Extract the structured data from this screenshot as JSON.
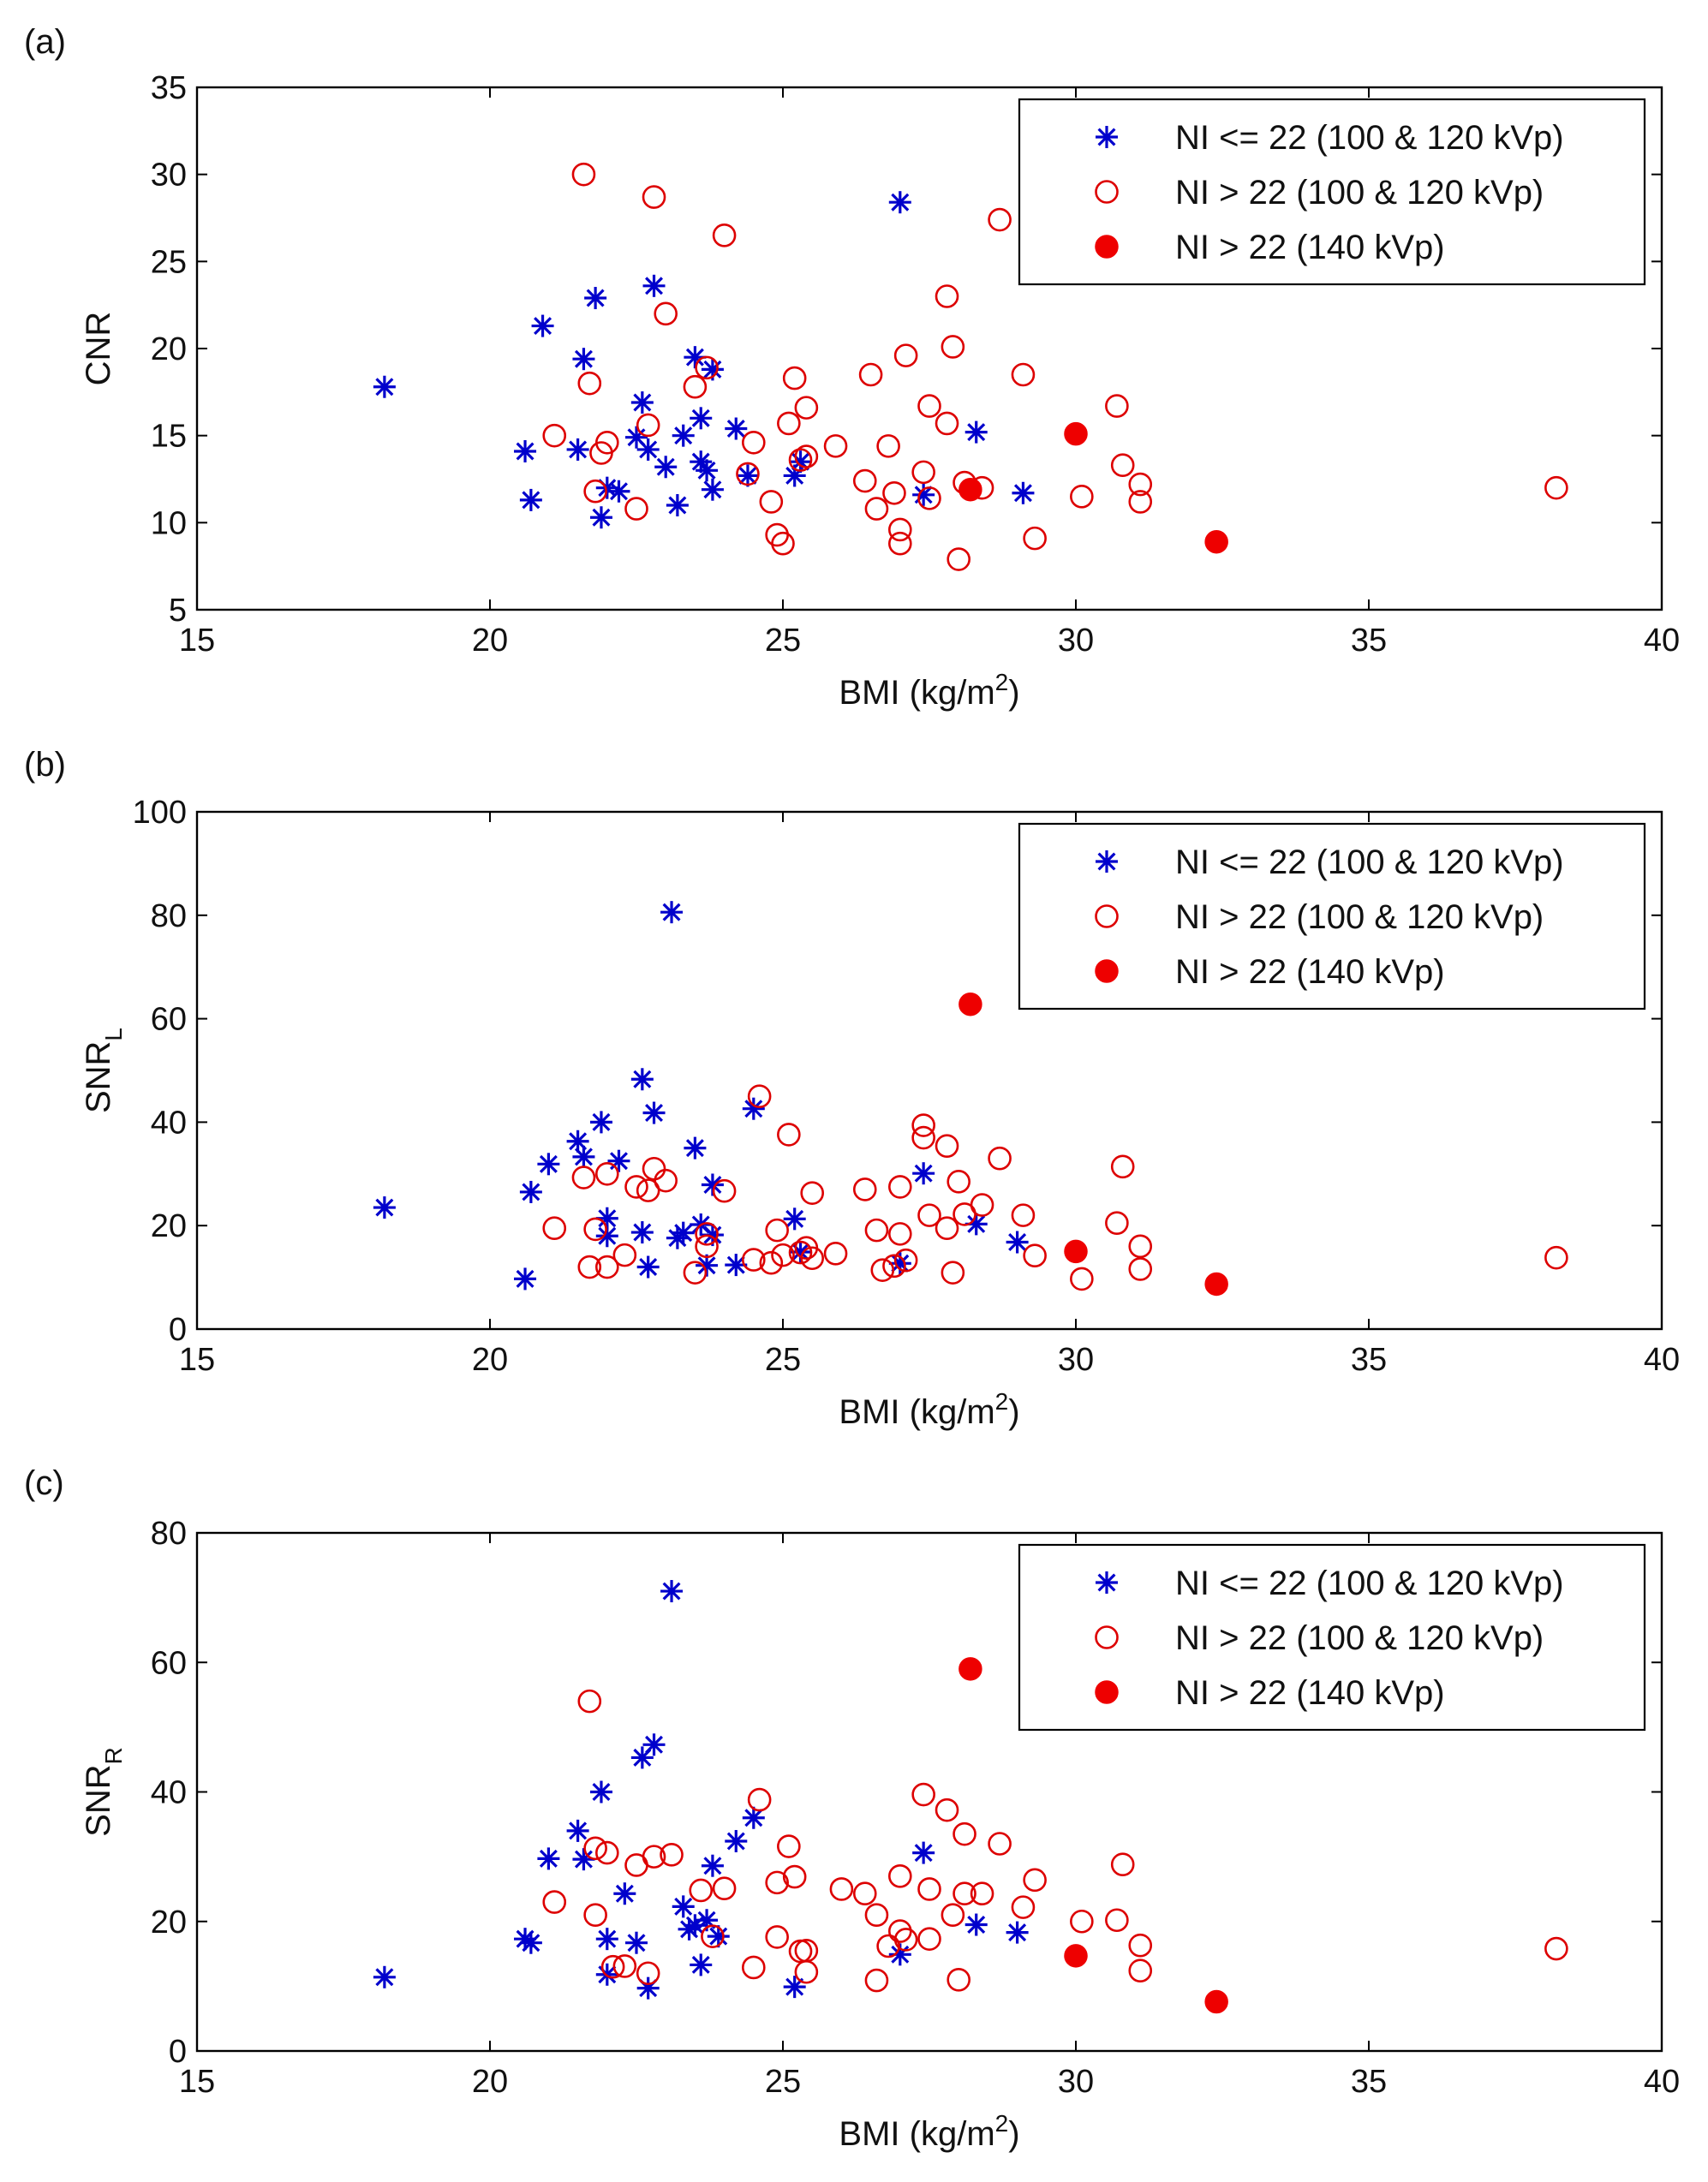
{
  "chart_data": [
    {
      "type": "scatter",
      "panel_label": "(a)",
      "title": "",
      "xlabel": "BMI (kg/m",
      "xlabel_sup": "2",
      "xlabel_close": ")",
      "ylabel": "CNR",
      "ylabel_sub": "",
      "xlim": [
        15,
        40
      ],
      "ylim": [
        5,
        35
      ],
      "xticks": [
        15,
        20,
        25,
        30,
        35,
        40
      ],
      "yticks": [
        5,
        10,
        15,
        20,
        25,
        30,
        35
      ],
      "legend_position": "top-right",
      "series": [
        {
          "name": "NI <= 22 (100 & 120 kVp)",
          "marker": "asterisk",
          "color": "#0000cc",
          "x": [
            18.2,
            20.6,
            20.7,
            20.9,
            21.5,
            21.6,
            21.8,
            21.9,
            22.0,
            22.2,
            22.5,
            22.6,
            22.7,
            22.8,
            23.0,
            23.2,
            23.3,
            23.5,
            23.6,
            23.6,
            23.7,
            23.8,
            23.8,
            24.2,
            24.4,
            25.2,
            25.3,
            27.0,
            27.4,
            28.3,
            29.1
          ],
          "y": [
            17.8,
            14.1,
            11.3,
            21.3,
            14.2,
            19.4,
            22.9,
            10.3,
            12.0,
            11.8,
            14.9,
            16.9,
            14.2,
            23.6,
            13.2,
            11.0,
            15.0,
            19.5,
            16.0,
            13.5,
            13.0,
            18.8,
            11.9,
            15.4,
            12.7,
            12.7,
            13.5,
            28.4,
            11.6,
            15.2,
            11.7
          ]
        },
        {
          "name": "NI > 22 (100 & 120 kVp)",
          "marker": "open-circle",
          "color": "#dd0000",
          "x": [
            21.1,
            21.6,
            21.7,
            21.8,
            21.9,
            22.0,
            22.5,
            22.7,
            22.8,
            23.0,
            23.5,
            23.7,
            24.0,
            24.4,
            24.5,
            24.8,
            24.9,
            25.0,
            25.1,
            25.2,
            25.3,
            25.4,
            25.4,
            25.9,
            26.4,
            26.5,
            26.6,
            26.8,
            26.9,
            27.0,
            27.0,
            27.1,
            27.4,
            27.5,
            27.5,
            27.8,
            27.8,
            27.9,
            28.0,
            28.1,
            28.4,
            28.7,
            29.1,
            29.3,
            30.1,
            30.7,
            30.8,
            31.1,
            31.1,
            38.2
          ],
          "y": [
            15.0,
            30.0,
            18.0,
            11.8,
            14.0,
            14.6,
            10.8,
            15.6,
            28.7,
            22.0,
            17.8,
            18.9,
            26.5,
            12.8,
            14.6,
            11.2,
            9.3,
            8.8,
            15.7,
            18.3,
            13.6,
            16.6,
            13.8,
            14.4,
            12.4,
            18.5,
            10.8,
            14.4,
            11.7,
            9.6,
            8.8,
            19.6,
            12.9,
            11.4,
            16.7,
            23.0,
            15.7,
            20.1,
            7.9,
            12.3,
            12.0,
            27.4,
            18.5,
            9.1,
            11.5,
            16.7,
            13.3,
            12.2,
            11.2,
            12.0
          ]
        },
        {
          "name": "NI > 22 (140 kVp)",
          "marker": "filled-circle",
          "color": "#ee0000",
          "x": [
            28.2,
            30.0,
            32.4
          ],
          "y": [
            11.9,
            15.1,
            8.9
          ]
        }
      ]
    },
    {
      "type": "scatter",
      "panel_label": "(b)",
      "title": "",
      "xlabel": "BMI (kg/m",
      "xlabel_sup": "2",
      "xlabel_close": ")",
      "ylabel": "SNR",
      "ylabel_sub": "L",
      "xlim": [
        15,
        40
      ],
      "ylim": [
        0,
        100
      ],
      "xticks": [
        15,
        20,
        25,
        30,
        35,
        40
      ],
      "yticks": [
        0,
        20,
        40,
        60,
        80,
        100
      ],
      "legend_position": "top-right",
      "series": [
        {
          "name": "NI <= 22 (100 & 120 kVp)",
          "marker": "asterisk",
          "color": "#0000cc",
          "x": [
            18.2,
            20.6,
            20.7,
            21.0,
            21.5,
            21.6,
            21.9,
            22.0,
            22.0,
            22.2,
            22.6,
            22.6,
            22.7,
            22.8,
            23.1,
            23.2,
            23.3,
            23.5,
            23.6,
            23.7,
            23.8,
            23.8,
            24.2,
            24.5,
            25.2,
            25.3,
            27.0,
            27.4,
            28.3,
            29.0
          ],
          "y": [
            23.5,
            9.7,
            26.5,
            31.9,
            36.3,
            33.3,
            40.0,
            21.4,
            18.0,
            32.5,
            48.3,
            18.7,
            12.0,
            41.8,
            80.6,
            17.6,
            18.6,
            35.0,
            20.2,
            12.3,
            27.9,
            18.2,
            12.4,
            42.6,
            21.3,
            14.9,
            12.7,
            30.1,
            20.3,
            16.8
          ]
        },
        {
          "name": "NI > 22 (100 & 120 kVp)",
          "marker": "open-circle",
          "color": "#dd0000",
          "x": [
            21.1,
            21.6,
            21.7,
            21.8,
            22.0,
            22.0,
            22.3,
            22.5,
            22.7,
            22.8,
            23.0,
            23.5,
            23.7,
            23.7,
            24.0,
            24.5,
            24.6,
            24.8,
            24.9,
            25.0,
            25.1,
            25.3,
            25.4,
            25.5,
            25.5,
            25.9,
            26.4,
            26.6,
            26.7,
            26.9,
            27.0,
            27.0,
            27.1,
            27.4,
            27.4,
            27.5,
            27.8,
            27.8,
            27.9,
            28.0,
            28.1,
            28.4,
            28.7,
            29.1,
            29.3,
            30.1,
            30.7,
            30.8,
            31.1,
            31.1,
            38.2
          ],
          "y": [
            19.5,
            29.3,
            12.0,
            19.3,
            30.0,
            12.0,
            14.3,
            27.5,
            26.8,
            31.0,
            28.7,
            10.9,
            16.0,
            18.4,
            26.7,
            13.4,
            45.0,
            12.8,
            19.1,
            14.3,
            37.6,
            14.8,
            15.7,
            26.3,
            13.7,
            14.6,
            27.0,
            19.1,
            11.4,
            12.2,
            18.4,
            27.5,
            13.3,
            39.4,
            37.0,
            22.0,
            19.5,
            35.4,
            10.9,
            28.5,
            22.2,
            24.0,
            33.0,
            22.0,
            14.2,
            9.7,
            20.5,
            31.4,
            11.6,
            16.0,
            13.8
          ]
        },
        {
          "name": "NI > 22 (140 kVp)",
          "marker": "filled-circle",
          "color": "#ee0000",
          "x": [
            28.2,
            30.0,
            32.4
          ],
          "y": [
            62.8,
            15.0,
            8.7
          ]
        }
      ]
    },
    {
      "type": "scatter",
      "panel_label": "(c)",
      "title": "",
      "xlabel": "BMI (kg/m",
      "xlabel_sup": "2",
      "xlabel_close": ")",
      "ylabel": "SNR",
      "ylabel_sub": "R",
      "xlim": [
        15,
        40
      ],
      "ylim": [
        0,
        80
      ],
      "xticks": [
        15,
        20,
        25,
        30,
        35,
        40
      ],
      "yticks": [
        0,
        20,
        40,
        60,
        80
      ],
      "legend_position": "top-right",
      "series": [
        {
          "name": "NI <= 22 (100 & 120 kVp)",
          "marker": "asterisk",
          "color": "#0000cc",
          "x": [
            18.2,
            20.6,
            20.7,
            21.0,
            21.5,
            21.6,
            21.9,
            22.0,
            22.0,
            22.3,
            22.5,
            22.6,
            22.7,
            22.8,
            23.1,
            23.3,
            23.4,
            23.5,
            23.6,
            23.7,
            23.8,
            23.9,
            24.2,
            24.5,
            25.2,
            27.0,
            27.4,
            28.3,
            29.0
          ],
          "y": [
            11.4,
            17.3,
            16.7,
            29.7,
            34.0,
            29.6,
            40.0,
            17.3,
            11.8,
            24.3,
            16.7,
            45.3,
            9.7,
            47.3,
            71.0,
            22.3,
            18.8,
            19.4,
            13.3,
            20.2,
            28.6,
            17.7,
            32.4,
            36.0,
            9.9,
            14.9,
            30.6,
            19.5,
            18.3
          ]
        },
        {
          "name": "NI > 22 (100 & 120 kVp)",
          "marker": "open-circle",
          "color": "#dd0000",
          "x": [
            21.1,
            21.7,
            21.8,
            21.8,
            22.0,
            22.1,
            22.3,
            22.5,
            22.7,
            22.8,
            23.1,
            23.6,
            23.8,
            24.0,
            24.5,
            24.6,
            24.9,
            24.9,
            25.1,
            25.2,
            25.3,
            25.4,
            25.4,
            26.0,
            26.4,
            26.6,
            26.6,
            26.8,
            27.0,
            27.0,
            27.1,
            27.4,
            27.5,
            27.5,
            27.8,
            27.9,
            28.0,
            28.1,
            28.1,
            28.4,
            28.7,
            29.1,
            29.3,
            30.1,
            30.7,
            30.8,
            31.1,
            31.1,
            38.2
          ],
          "y": [
            23.0,
            54.0,
            31.3,
            21.0,
            30.6,
            13.0,
            13.1,
            28.7,
            12.0,
            30.0,
            30.3,
            24.8,
            17.7,
            25.1,
            12.9,
            38.8,
            26.0,
            17.6,
            31.6,
            26.9,
            15.4,
            15.5,
            12.2,
            25.0,
            24.3,
            21.0,
            10.9,
            16.2,
            27.0,
            18.5,
            17.2,
            39.6,
            17.3,
            25.0,
            37.2,
            21.0,
            11.0,
            33.5,
            24.3,
            24.3,
            32.0,
            22.2,
            26.4,
            20.0,
            20.2,
            28.8,
            12.4,
            16.3,
            15.8
          ]
        },
        {
          "name": "NI > 22 (140 kVp)",
          "marker": "filled-circle",
          "color": "#ee0000",
          "x": [
            28.2,
            30.0,
            32.4
          ],
          "y": [
            59.0,
            14.7,
            7.6
          ]
        }
      ]
    }
  ]
}
